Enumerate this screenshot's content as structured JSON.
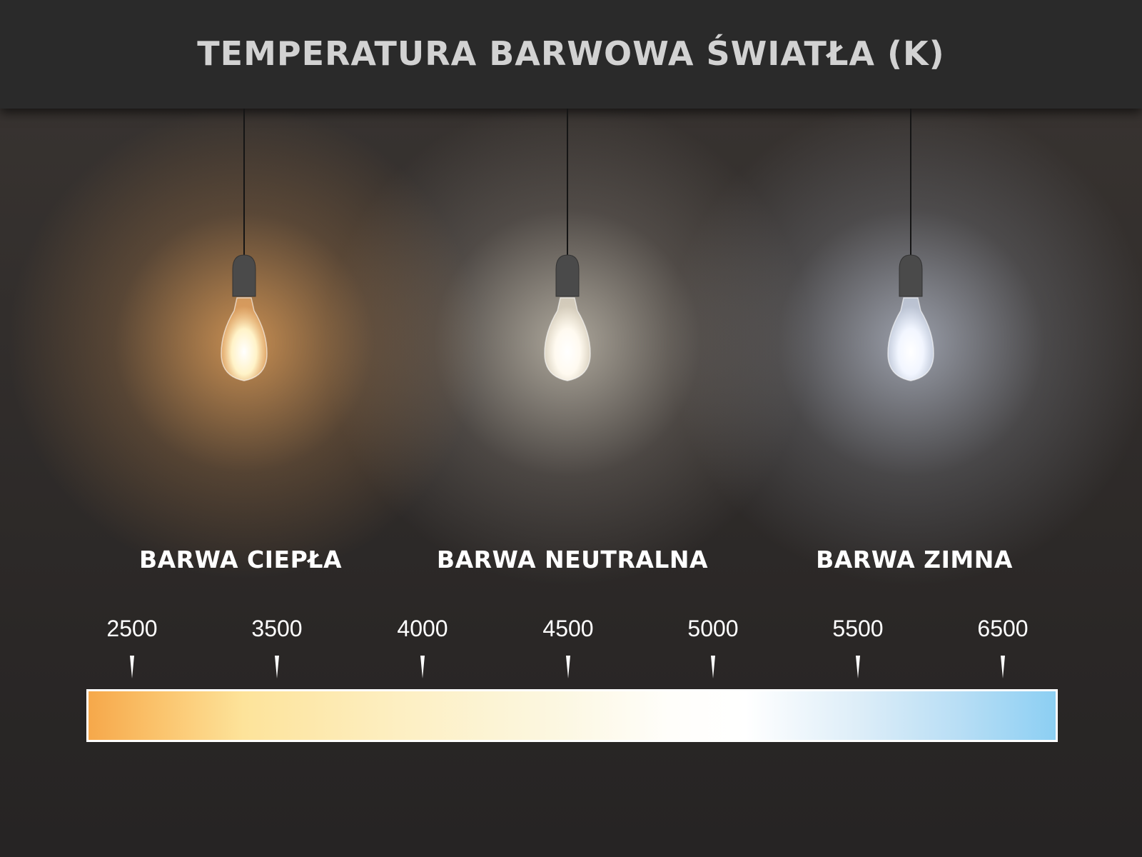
{
  "title": "TEMPERATURA BARWOWA ŚWIATŁA (K)",
  "labels": [
    "BARWA CIEPŁA",
    "BARWA NEUTRALNA",
    "BARWA ZIMNA"
  ],
  "scale": {
    "unit": "K",
    "values": [
      "2500",
      "3500",
      "4000",
      "4500",
      "5000",
      "5500",
      "6500"
    ],
    "gradient_colors": [
      "#f6a84a",
      "#fde39a",
      "#fcf7e0",
      "#ffffff",
      "#8ccff3"
    ]
  },
  "bulbs": [
    {
      "tone": "warm",
      "glow": "#f5b06a"
    },
    {
      "tone": "neutral",
      "glow": "#fff5e0"
    },
    {
      "tone": "cold",
      "glow": "#e0ebff"
    }
  ]
}
